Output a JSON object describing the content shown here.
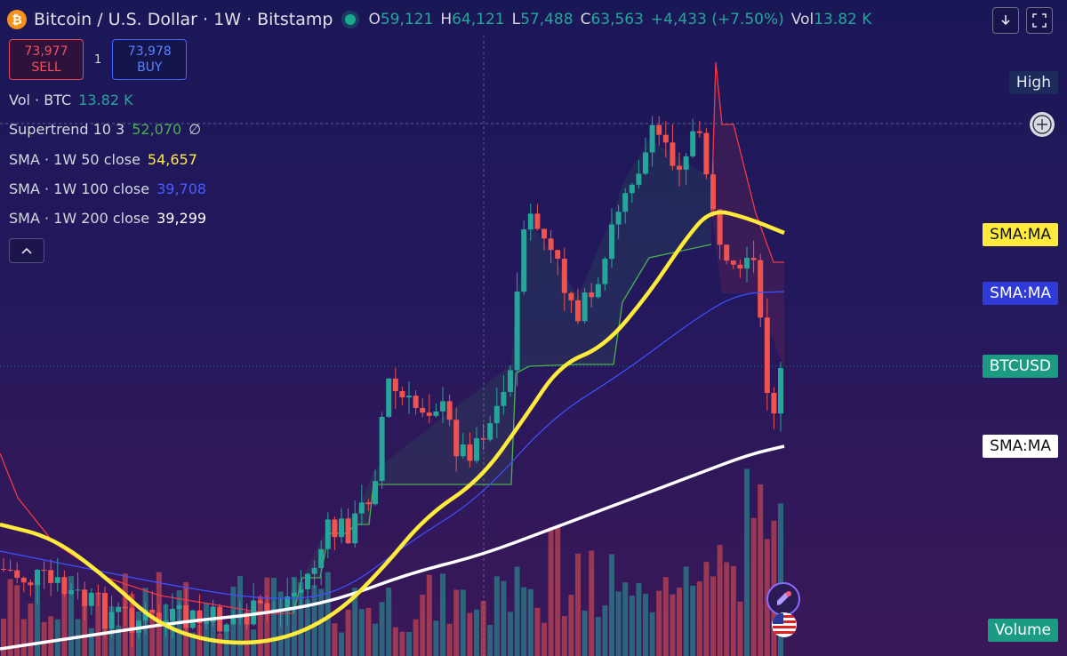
{
  "header": {
    "symbol_title": "Bitcoin / U.S. Dollar · 1W · Bitstamp",
    "ohlc": [
      {
        "key": "O",
        "value": "59,121"
      },
      {
        "key": "H",
        "value": "64,121"
      },
      {
        "key": "L",
        "value": "57,488"
      },
      {
        "key": "C",
        "value": "63,563"
      },
      {
        "key": "",
        "value": "+4,433 (+7.50%)"
      },
      {
        "key": "Vol",
        "value": "13.82 K"
      }
    ],
    "icon": "bitcoin-icon"
  },
  "trade": {
    "sell_price": "73,977",
    "sell_label": "SELL",
    "quantity": "1",
    "buy_price": "73,978",
    "buy_label": "BUY"
  },
  "legend": [
    {
      "name": "Vol · BTC",
      "value": "13.82 K",
      "color": "#26a69a"
    },
    {
      "name": "Supertrend 10 3",
      "value": "52,070",
      "extra": "∅",
      "color": "#4caf50"
    },
    {
      "name": "SMA · 1W 50 close",
      "value": "54,657",
      "color": "#ffeb3b"
    },
    {
      "name": "SMA · 1W 100 close",
      "value": "39,708",
      "color": "#3f51ff"
    },
    {
      "name": "SMA · 1W 200 close",
      "value": "39,299",
      "color": "#ffffff"
    }
  ],
  "price_labels": {
    "high": "High",
    "sma50": "SMA:MA",
    "sma100": "SMA:MA",
    "btcusd": "BTCUSD",
    "sma200": "SMA:MA",
    "volume": "Volume"
  },
  "colors": {
    "up": "#26a69a",
    "down": "#ef5350",
    "sma50": "#ffeb3b",
    "sma100": "#3f51ff",
    "sma200": "#ffffff",
    "supertrend_up": "#4caf50",
    "supertrend_down": "#f23645"
  },
  "icons": {
    "download": "arrow-down-icon",
    "fullscreen": "fullscreen-icon",
    "add": "plus-circle-icon",
    "collapse": "chevron-up-icon",
    "assistant": "rocket-icon",
    "flag": "us-flag-icon"
  },
  "chart_data": {
    "type": "candlestick",
    "timeframe": "1W",
    "last": {
      "open": 59121,
      "high": 64121,
      "low": 57488,
      "close": 63563,
      "change": 4433,
      "change_pct": 7.5,
      "volume_k": 13.82
    },
    "indicators": {
      "supertrend": 52070,
      "sma50": 54657,
      "sma100": 39708,
      "sma200": 39299
    }
  }
}
